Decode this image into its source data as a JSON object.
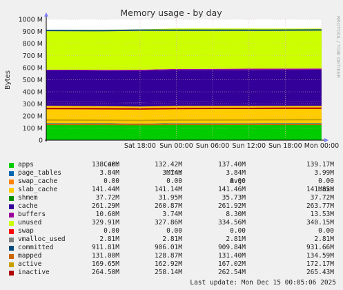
{
  "chart_data": {
    "type": "area",
    "title": "Memory usage - by day",
    "ylabel": "Bytes",
    "watermark": "RRDTOOL / TOBI OETIKER",
    "ylim": [
      0,
      1000
    ],
    "y_ticks": [
      0,
      100,
      200,
      300,
      400,
      500,
      600,
      700,
      800,
      900,
      1000
    ],
    "y_tick_labels": [
      "0",
      "100 M",
      "200 M",
      "300 M",
      "400 M",
      "500 M",
      "600 M",
      "700 M",
      "800 M",
      "900 M",
      "1000 M"
    ],
    "x_ticks": [
      "Sat 18:00",
      "Sun 00:00",
      "Sun 06:00",
      "Sun 12:00",
      "Sun 18:00",
      "Mon 00:00"
    ],
    "grid": true,
    "x_hours": [
      -21.5,
      -12,
      -6,
      0,
      6,
      12,
      18,
      24
    ],
    "series": [
      {
        "name": "apps",
        "color": "#00cc00",
        "values": [
          138.4,
          136.5,
          133.5,
          138.0,
          138.1,
          138.0,
          138.2,
          138.4
        ]
      },
      {
        "name": "page_tables",
        "color": "#0066b3",
        "values": [
          3.84,
          3.84,
          3.84,
          3.84,
          3.84,
          3.84,
          3.84,
          3.84
        ]
      },
      {
        "name": "swap_cache",
        "color": "#ff8000",
        "values": [
          0,
          0,
          0,
          0,
          0,
          0,
          0,
          0
        ]
      },
      {
        "name": "slab_cache",
        "color": "#ffcc00",
        "values": [
          141.5,
          141.2,
          141.3,
          141.5,
          141.5,
          141.4,
          141.5,
          141.44
        ]
      },
      {
        "name": "shmem",
        "color": "#330099",
        "values": [
          32.0,
          33.5,
          34.5,
          35.5,
          36.0,
          36.5,
          37.0,
          37.72
        ]
      },
      {
        "name": "cache",
        "color": "#330099",
        "values": [
          262.5,
          261.0,
          262.0,
          262.0,
          262.0,
          262.0,
          261.5,
          261.29
        ]
      },
      {
        "name": "buffers",
        "color": "#990099",
        "values": [
          5.0,
          6.5,
          8.0,
          8.5,
          9.0,
          9.5,
          10.2,
          10.6
        ]
      },
      {
        "name": "unused",
        "color": "#ccff00",
        "values": [
          330.0,
          332.0,
          334.0,
          335.0,
          334.0,
          333.0,
          331.0,
          329.91
        ]
      }
    ],
    "committed": {
      "name": "committed",
      "color": "#024b7a",
      "values": [
        908,
        906,
        911,
        910,
        910,
        910,
        911,
        911.81
      ]
    },
    "legend_header": [
      "Cur:",
      "Min:",
      "Avg:",
      "Max:"
    ],
    "legend": [
      {
        "name": "apps",
        "color": "#00cc00",
        "cur": "138.40M",
        "min": "132.42M",
        "avg": "137.40M",
        "max": "139.17M"
      },
      {
        "name": "page_tables",
        "color": "#0066b3",
        "cur": "3.84M",
        "min": "3.74M",
        "avg": "3.84M",
        "max": "3.99M"
      },
      {
        "name": "swap_cache",
        "color": "#ff8000",
        "cur": "0.00",
        "min": "0.00",
        "avg": "0.00",
        "max": "0.00"
      },
      {
        "name": "slab_cache",
        "color": "#ffcc00",
        "cur": "141.44M",
        "min": "141.14M",
        "avg": "141.46M",
        "max": "141.85M"
      },
      {
        "name": "shmem",
        "color": "#008f00",
        "cur": "37.72M",
        "min": "31.95M",
        "avg": "35.73M",
        "max": "37.72M"
      },
      {
        "name": "cache",
        "color": "#330099",
        "cur": "261.29M",
        "min": "260.87M",
        "avg": "261.92M",
        "max": "263.77M"
      },
      {
        "name": "buffers",
        "color": "#990099",
        "cur": "10.60M",
        "min": "3.74M",
        "avg": "8.30M",
        "max": "13.53M"
      },
      {
        "name": "unused",
        "color": "#ccff00",
        "cur": "329.91M",
        "min": "327.86M",
        "avg": "334.56M",
        "max": "340.15M"
      },
      {
        "name": "swap",
        "color": "#ff0000",
        "cur": "0.00",
        "min": "0.00",
        "avg": "0.00",
        "max": "0.00"
      },
      {
        "name": "vmalloc_used",
        "color": "#808080",
        "cur": "2.81M",
        "min": "2.81M",
        "avg": "2.81M",
        "max": "2.81M"
      },
      {
        "name": "committed",
        "color": "#024b7a",
        "cur": "911.81M",
        "min": "906.01M",
        "avg": "909.84M",
        "max": "931.66M"
      },
      {
        "name": "mapped",
        "color": "#cc6600",
        "cur": "131.00M",
        "min": "128.87M",
        "avg": "131.40M",
        "max": "134.59M"
      },
      {
        "name": "active",
        "color": "#c8a000",
        "cur": "169.65M",
        "min": "162.92M",
        "avg": "167.02M",
        "max": "172.17M"
      },
      {
        "name": "inactive",
        "color": "#b00000",
        "cur": "264.50M",
        "min": "258.14M",
        "avg": "262.54M",
        "max": "265.43M"
      }
    ],
    "overlay_lines": [
      {
        "name": "inactive",
        "color": "#b00000",
        "values": [
          262,
          260,
          258,
          262,
          263,
          263,
          264,
          264.5
        ]
      },
      {
        "name": "active",
        "color": "#c8a000",
        "values": [
          167,
          165,
          163,
          166,
          167,
          168,
          169,
          169.65
        ]
      },
      {
        "name": "mapped",
        "color": "#cc6600",
        "values": [
          131,
          130,
          129,
          131,
          131,
          132,
          131,
          131.0
        ]
      }
    ]
  },
  "footer": "Last update: Mon Dec 15 00:05:06 2025"
}
